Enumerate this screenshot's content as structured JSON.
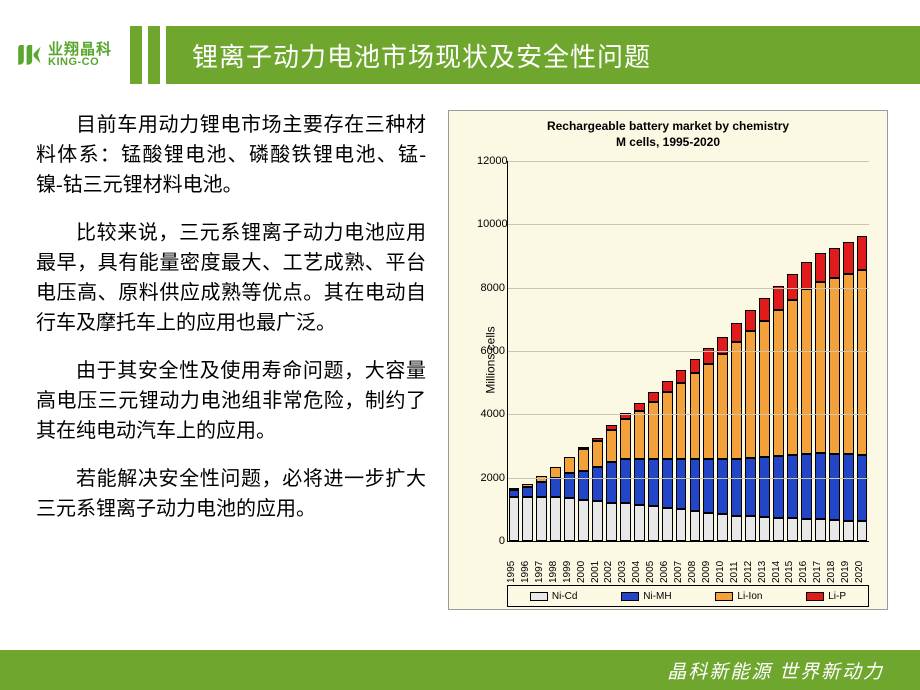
{
  "logo": {
    "cn": "业翔晶科",
    "en": "KING-CO"
  },
  "title": "锂离子动力电池市场现状及安全性问题",
  "paragraphs": [
    "目前车用动力锂电市场主要存在三种材料体系：锰酸锂电池、磷酸铁锂电池、锰-镍-钴三元锂材料电池。",
    "比较来说，三元系锂离子动力电池应用最早，具有能量密度最大、工艺成熟、平台电压高、原料供应成熟等优点。其在电动自行车及摩托车上的应用也最广泛。",
    "由于其安全性及使用寿命问题，大容量高电压三元锂动力电池组非常危险，制约了其在纯电动汽车上的应用。",
    "若能解决安全性问题，必将进一步扩大三元系锂离子动力电池的应用。"
  ],
  "footer": "晶科新能源   世界新动力",
  "chart": {
    "type": "stacked-bar",
    "title_line1": "Rechargeable battery market by chemistry",
    "title_line2": "M cells, 1995-2020",
    "ylabel": "Millions cells",
    "ylim": [
      0,
      12000
    ],
    "ytick_step": 2000,
    "background_color": "#fbf8e3",
    "grid_color": "#c9c7b3",
    "bar_border": "#000000",
    "categories": [
      "1995",
      "1996",
      "1997",
      "1998",
      "1999",
      "2000",
      "2001",
      "2002",
      "2003",
      "2004",
      "2005",
      "2006",
      "2007",
      "2008",
      "2009",
      "2010",
      "2011",
      "2012",
      "2013",
      "2014",
      "2015",
      "2016",
      "2017",
      "2018",
      "2019",
      "2020"
    ],
    "series": [
      {
        "name": "Ni-Cd",
        "color": "#e8e8e8",
        "label": "Ni-Cd"
      },
      {
        "name": "Ni-MH",
        "color": "#2346c8",
        "label": "Ni-MH"
      },
      {
        "name": "Li-Ion",
        "color": "#f3a13a",
        "label": "Li-Ion"
      },
      {
        "name": "Li-P",
        "color": "#e11b1b",
        "label": "Li-P"
      }
    ],
    "data": [
      [
        1400,
        200,
        50,
        0
      ],
      [
        1400,
        300,
        100,
        0
      ],
      [
        1400,
        450,
        200,
        0
      ],
      [
        1400,
        600,
        350,
        0
      ],
      [
        1350,
        800,
        500,
        0
      ],
      [
        1300,
        900,
        700,
        50
      ],
      [
        1250,
        1100,
        800,
        100
      ],
      [
        1200,
        1300,
        1000,
        150
      ],
      [
        1200,
        1400,
        1250,
        200
      ],
      [
        1150,
        1450,
        1500,
        250
      ],
      [
        1100,
        1500,
        1800,
        300
      ],
      [
        1050,
        1550,
        2100,
        350
      ],
      [
        1000,
        1600,
        2400,
        400
      ],
      [
        950,
        1650,
        2700,
        450
      ],
      [
        900,
        1700,
        3000,
        500
      ],
      [
        850,
        1750,
        3300,
        550
      ],
      [
        800,
        1800,
        3700,
        600
      ],
      [
        780,
        1850,
        4000,
        650
      ],
      [
        760,
        1900,
        4300,
        700
      ],
      [
        740,
        1950,
        4600,
        750
      ],
      [
        720,
        2000,
        4900,
        800
      ],
      [
        700,
        2050,
        5200,
        850
      ],
      [
        680,
        2100,
        5400,
        900
      ],
      [
        660,
        2100,
        5550,
        950
      ],
      [
        640,
        2100,
        5700,
        1000
      ],
      [
        620,
        2100,
        5850,
        1050
      ]
    ]
  }
}
